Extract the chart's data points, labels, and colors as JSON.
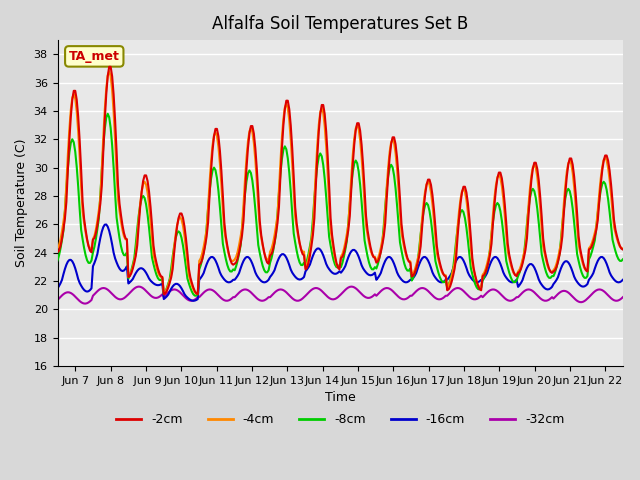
{
  "title": "Alfalfa Soil Temperatures Set B",
  "xlabel": "Time",
  "ylabel": "Soil Temperature (C)",
  "ylim": [
    16,
    39
  ],
  "yticks": [
    16,
    18,
    20,
    22,
    24,
    26,
    28,
    30,
    32,
    34,
    36,
    38
  ],
  "xtick_labels": [
    "Jun 7",
    "Jun 8",
    " Jun 9",
    "Jun 10",
    "Jun 11",
    "Jun 12",
    "Jun 13",
    "Jun 14",
    "Jun 15",
    "Jun 16",
    "Jun 17",
    "Jun 18",
    "Jun 19",
    "Jun 20",
    "Jun 21",
    "Jun 22"
  ],
  "legend_labels": [
    "-2cm",
    "-4cm",
    "-8cm",
    "-16cm",
    "-32cm"
  ],
  "legend_colors": [
    "#dd0000",
    "#ff8800",
    "#00cc00",
    "#0000cc",
    "#aa00aa"
  ],
  "annotation_text": "TA_met",
  "annotation_color": "#cc0000",
  "annotation_bg": "#ffffcc",
  "plot_bg": "#e8e8e8",
  "fig_bg": "#d8d8d8",
  "grid_color": "#ffffff",
  "n_days": 16,
  "pts_per_day": 24
}
